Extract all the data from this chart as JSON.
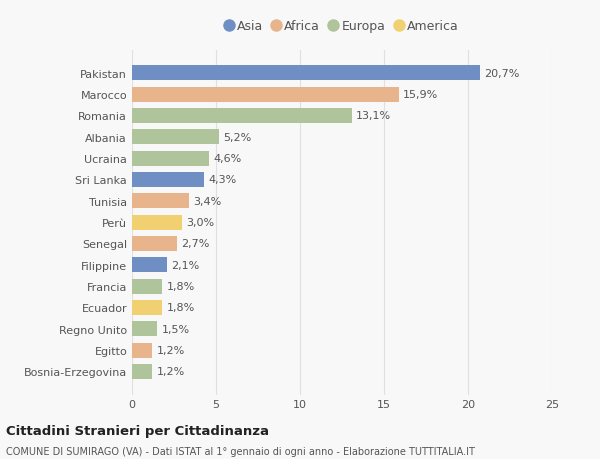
{
  "countries": [
    "Pakistan",
    "Marocco",
    "Romania",
    "Albania",
    "Ucraina",
    "Sri Lanka",
    "Tunisia",
    "Perù",
    "Senegal",
    "Filippine",
    "Francia",
    "Ecuador",
    "Regno Unito",
    "Egitto",
    "Bosnia-Erzegovina"
  ],
  "values": [
    20.7,
    15.9,
    13.1,
    5.2,
    4.6,
    4.3,
    3.4,
    3.0,
    2.7,
    2.1,
    1.8,
    1.8,
    1.5,
    1.2,
    1.2
  ],
  "labels": [
    "20,7%",
    "15,9%",
    "13,1%",
    "5,2%",
    "4,6%",
    "4,3%",
    "3,4%",
    "3,0%",
    "2,7%",
    "2,1%",
    "1,8%",
    "1,8%",
    "1,5%",
    "1,2%",
    "1,2%"
  ],
  "continents": [
    "Asia",
    "Africa",
    "Europa",
    "Europa",
    "Europa",
    "Asia",
    "Africa",
    "America",
    "Africa",
    "Asia",
    "Europa",
    "America",
    "Europa",
    "Africa",
    "Europa"
  ],
  "continent_colors": {
    "Asia": "#6e8ec4",
    "Africa": "#e8b48c",
    "Europa": "#afc49a",
    "America": "#f0d070"
  },
  "legend_order": [
    "Asia",
    "Africa",
    "Europa",
    "America"
  ],
  "title_bold": "Cittadini Stranieri per Cittadinanza",
  "title_sub": "COMUNE DI SUMIRAGO (VA) - Dati ISTAT al 1° gennaio di ogni anno - Elaborazione TUTTITALIA.IT",
  "xlim": [
    0,
    25
  ],
  "xticks": [
    0,
    5,
    10,
    15,
    20,
    25
  ],
  "background_color": "#f8f8f8",
  "grid_color": "#e0e0e0",
  "bar_height": 0.7,
  "label_fontsize": 8.0,
  "tick_fontsize": 8.0,
  "legend_fontsize": 9.0,
  "text_color": "#555555"
}
